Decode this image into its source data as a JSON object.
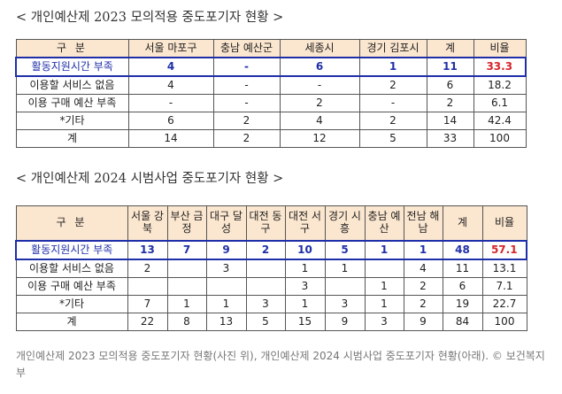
{
  "heading1": "< 개인예산제 2023 모의적용 중도포기자 현황 >",
  "heading2": "< 개인예산제 2024 시범사업 중도포기자 현황 >",
  "table1": {
    "headers": [
      "구 분",
      "서울 마포구",
      "충남 예산군",
      "세종시",
      "경기 김포시",
      "계",
      "비율"
    ],
    "rows": [
      [
        "활동지원시간 부족",
        "4",
        "-",
        "6",
        "1",
        "11",
        "33.3"
      ],
      [
        "이용할 서비스 없음",
        "4",
        "-",
        "-",
        "2",
        "6",
        "18.2"
      ],
      [
        "이용 구매 예산 부족",
        "-",
        "-",
        "2",
        "-",
        "2",
        "6.1"
      ],
      [
        "*기타",
        "6",
        "2",
        "4",
        "2",
        "14",
        "42.4"
      ],
      [
        "계",
        "14",
        "2",
        "12",
        "5",
        "33",
        "100"
      ]
    ]
  },
  "table2": {
    "headers": [
      "구 분",
      "서울 강북",
      "부산 금정",
      "대구 달성",
      "대전 동구",
      "대전 서구",
      "경기 시흥",
      "충남 예산",
      "전남 해남",
      "계",
      "비율"
    ],
    "rows": [
      [
        "활동지원시간 부족",
        "13",
        "7",
        "9",
        "2",
        "10",
        "5",
        "1",
        "1",
        "48",
        "57.1"
      ],
      [
        "이용할 서비스 없음",
        "2",
        "",
        "3",
        "",
        "1",
        "1",
        "",
        "4",
        "11",
        "13.1"
      ],
      [
        "이용 구매 예산 부족",
        "",
        "",
        "",
        "",
        "3",
        "",
        "1",
        "2",
        "6",
        "7.1"
      ],
      [
        "*기타",
        "7",
        "1",
        "1",
        "3",
        "1",
        "3",
        "1",
        "2",
        "19",
        "22.7"
      ],
      [
        "계",
        "22",
        "8",
        "13",
        "5",
        "15",
        "9",
        "3",
        "9",
        "84",
        "100"
      ]
    ]
  },
  "caption": "개인예산제 2023 모의적용 중도포기자 현황(사진 위), 개인예산제 2024 시범사업 중도포기자 현황(아래). © 보건복지부",
  "colors": {
    "header_bg": "#fbe6cf",
    "highlight_text": "#1f2fa8",
    "highlight_rate": "#d7262b"
  }
}
